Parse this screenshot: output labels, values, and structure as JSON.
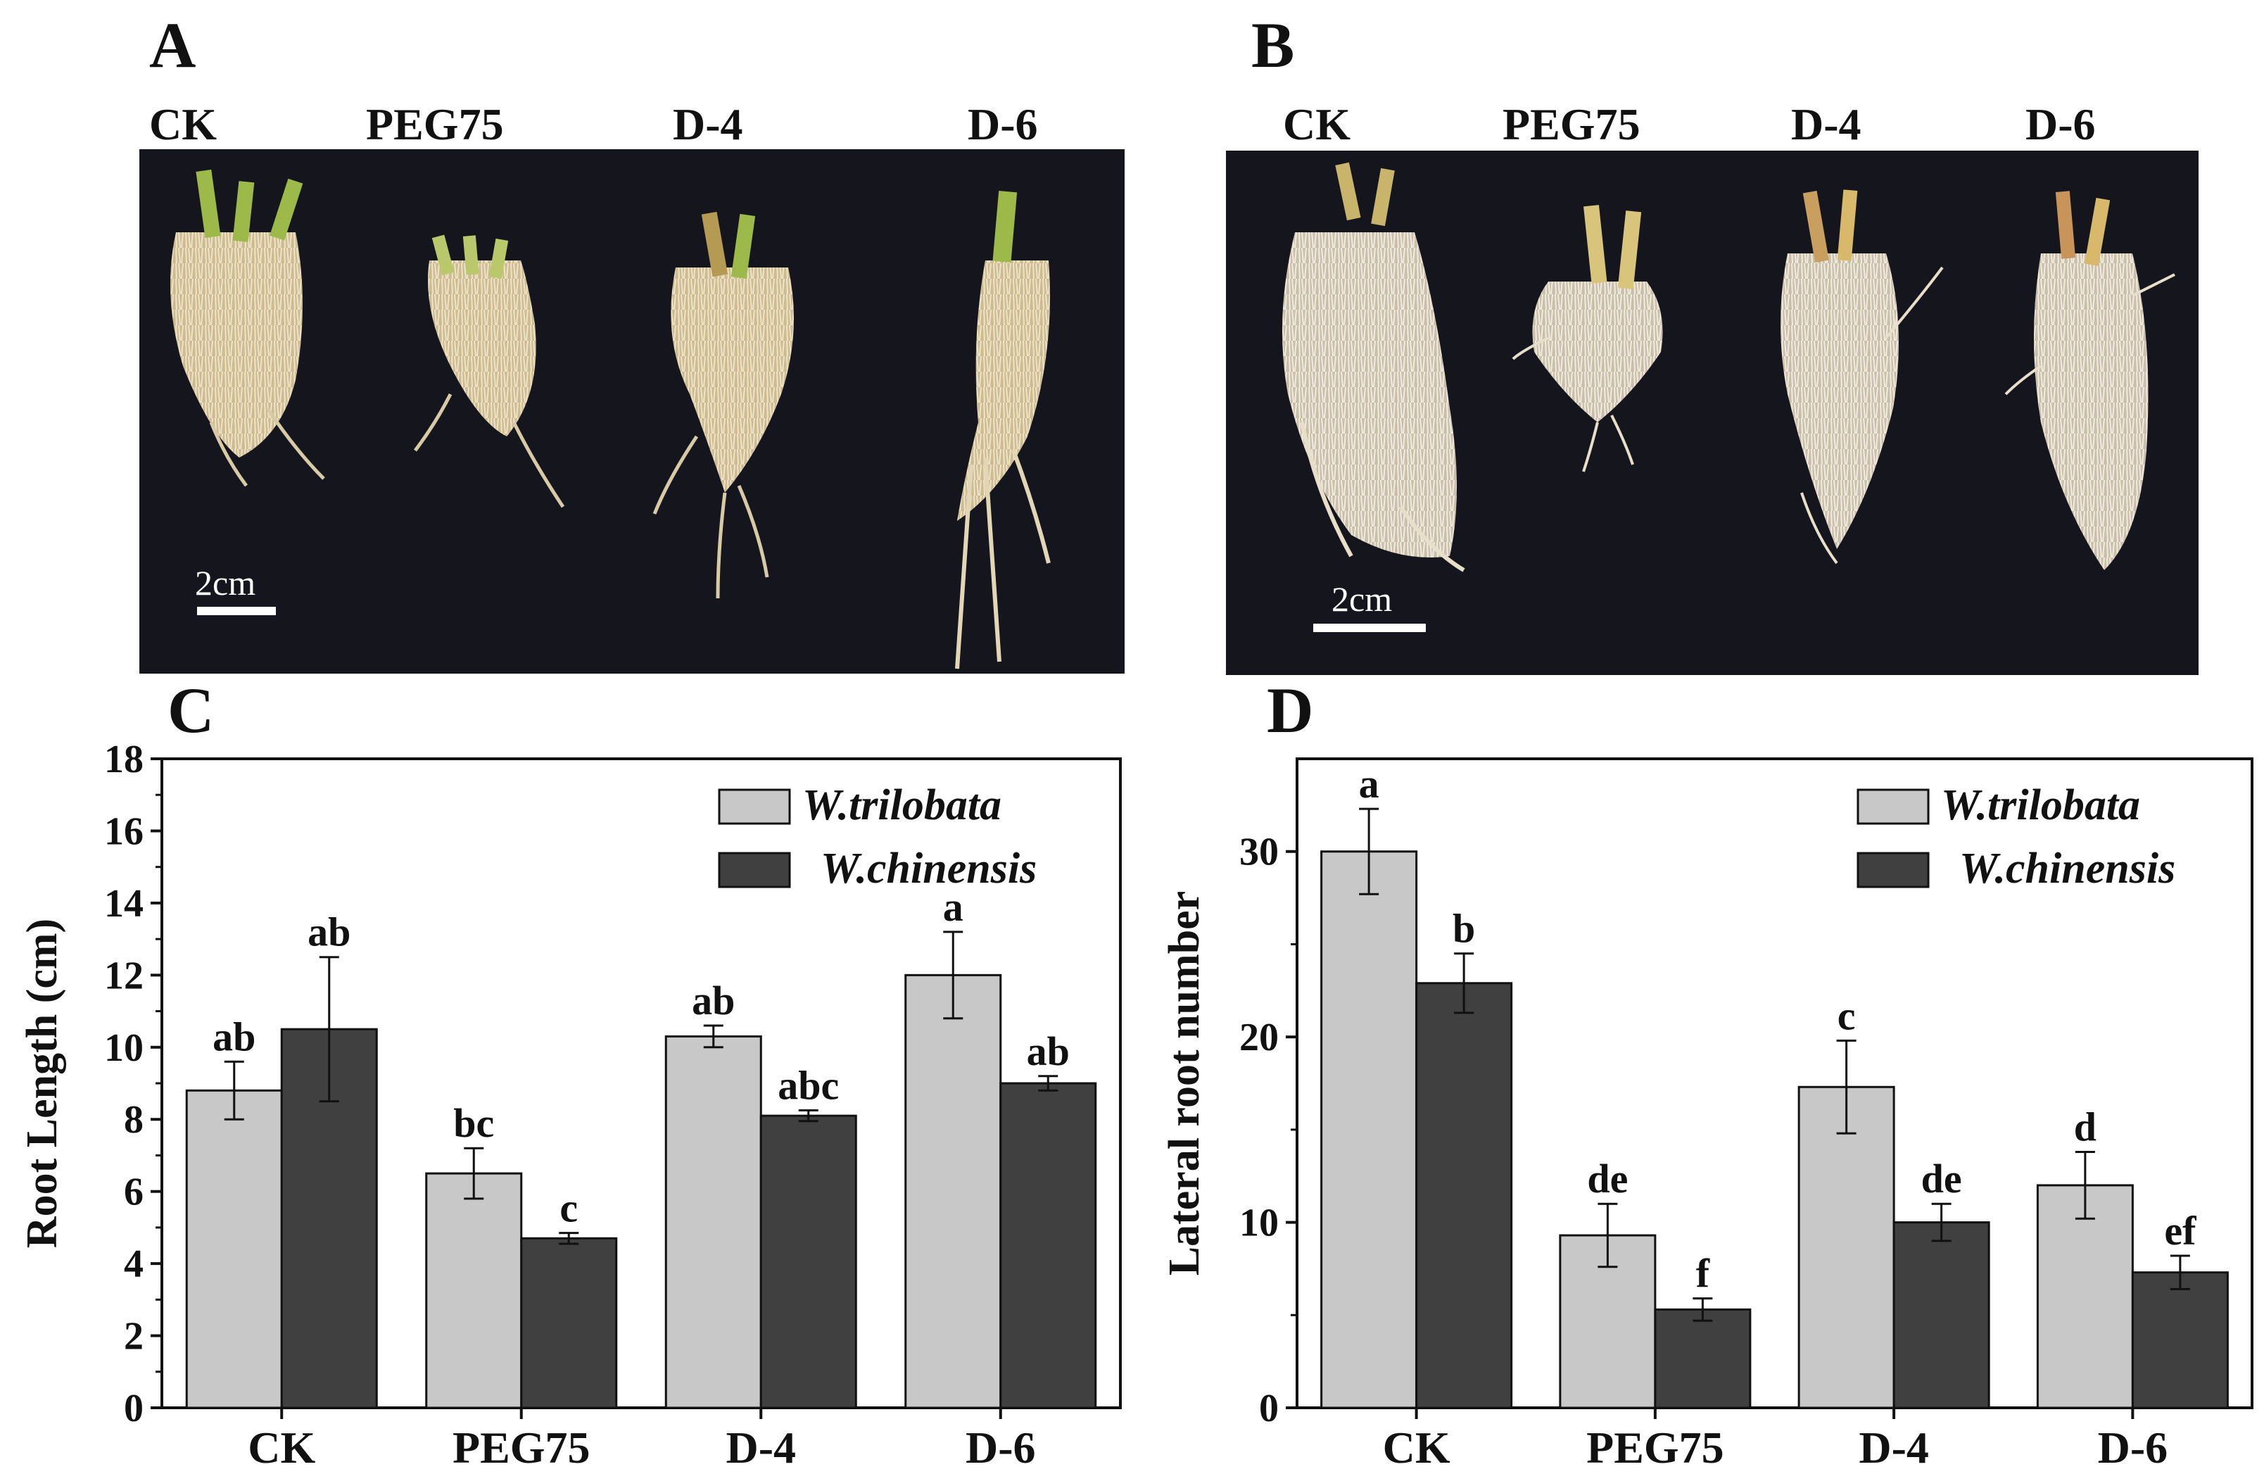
{
  "panels": {
    "A": {
      "label": "A",
      "conditions": [
        "CK",
        "PEG75",
        "D-4",
        "D-6"
      ],
      "scale_bar": "2cm"
    },
    "B": {
      "label": "B",
      "conditions": [
        "CK",
        "PEG75",
        "D-4",
        "D-6"
      ],
      "scale_bar": "2cm"
    },
    "C": {
      "label": "C"
    },
    "D": {
      "label": "D"
    }
  },
  "colors": {
    "photo_bg": "#15161d",
    "root": "#d9c9a5",
    "shoot": "#9cb94a",
    "bar_light": "#c8c8c8",
    "bar_dark": "#404040"
  },
  "chart_data": [
    {
      "type": "bar",
      "panel": "C",
      "categories": [
        "CK",
        "PEG75",
        "D-4",
        "D-6"
      ],
      "ylabel": "Root Length (cm)",
      "ylim": [
        0,
        18
      ],
      "yticks": [
        0,
        2,
        4,
        6,
        8,
        10,
        12,
        14,
        16,
        18
      ],
      "grid": false,
      "legend": "top-right",
      "series": [
        {
          "name": "W.trilobata",
          "color": "#c8c8c8",
          "values": [
            8.8,
            6.5,
            10.3,
            12.0
          ],
          "errors": [
            0.8,
            0.7,
            0.3,
            1.2
          ],
          "letters": [
            "ab",
            "bc",
            "ab",
            "a"
          ]
        },
        {
          "name": "W.chinensis",
          "color": "#404040",
          "values": [
            10.5,
            4.7,
            8.1,
            9.0
          ],
          "errors": [
            2.0,
            0.15,
            0.15,
            0.2
          ],
          "letters": [
            "ab",
            "c",
            "abc",
            "ab"
          ]
        }
      ]
    },
    {
      "type": "bar",
      "panel": "D",
      "categories": [
        "CK",
        "PEG75",
        "D-4",
        "D-6"
      ],
      "ylabel": "Lateral root number",
      "ylim": [
        0,
        35
      ],
      "yticks": [
        0,
        10,
        20,
        30
      ],
      "grid": false,
      "legend": "top-right",
      "series": [
        {
          "name": "W.trilobata",
          "color": "#c8c8c8",
          "values": [
            30.0,
            9.3,
            17.3,
            12.0
          ],
          "errors": [
            2.3,
            1.7,
            2.5,
            1.8
          ],
          "letters": [
            "a",
            "de",
            "c",
            "d"
          ]
        },
        {
          "name": "W.chinensis",
          "color": "#404040",
          "values": [
            22.9,
            5.3,
            10.0,
            7.3
          ],
          "errors": [
            1.6,
            0.6,
            1.0,
            0.9
          ],
          "letters": [
            "b",
            "f",
            "de",
            "ef"
          ]
        }
      ]
    }
  ]
}
